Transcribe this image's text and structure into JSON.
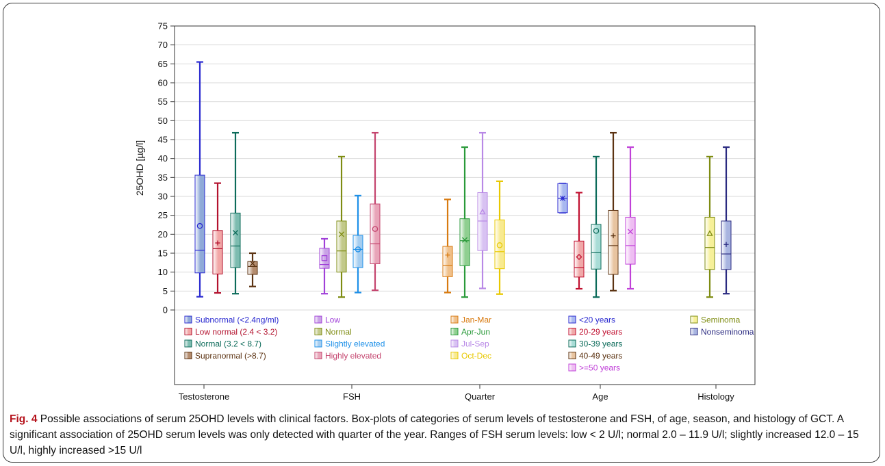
{
  "chart_data": {
    "type": "boxplot",
    "ylabel": "25OHD [µg/l]",
    "xlabel": "",
    "ylim": [
      0,
      75
    ],
    "yticks": [
      0,
      5,
      10,
      15,
      20,
      25,
      30,
      35,
      40,
      45,
      50,
      55,
      60,
      65,
      70,
      75
    ],
    "grid": "horizontal",
    "groups": [
      {
        "name": "Testosterone",
        "series": [
          {
            "name": "Subnormal (<2.4ng/ml)",
            "color": "#2a2ad0",
            "fill": "#8fa9d8",
            "marker": "circle",
            "min": 3.5,
            "q1": 9.8,
            "median": 15.8,
            "q3": 35.6,
            "max": 65.5,
            "mean": 22.2
          },
          {
            "name": "Low normal (2.4 < 3.2)",
            "color": "#b3122e",
            "fill": "#f2a6a6",
            "marker": "plus",
            "min": 4.5,
            "q1": 9.5,
            "median": 16.2,
            "q3": 21.0,
            "max": 33.5,
            "mean": 17.7
          },
          {
            "name": "Normal (3.2 < 8.7)",
            "color": "#0c6b5a",
            "fill": "#7dbcb0",
            "marker": "x",
            "min": 4.3,
            "q1": 11.2,
            "median": 16.9,
            "q3": 25.6,
            "max": 46.8,
            "mean": 20.4
          },
          {
            "name": "Supranormal (>8.7)",
            "color": "#5c3312",
            "fill": "#b48c6e",
            "marker": "x",
            "min": 6.2,
            "q1": 9.4,
            "median": 11.5,
            "q3": 12.8,
            "max": 15.0,
            "mean": 12.3
          }
        ]
      },
      {
        "name": "FSH",
        "series": [
          {
            "name": "Low",
            "color": "#a040d8",
            "fill": "#c9a2e6",
            "marker": "square",
            "min": 4.3,
            "q1": 11.0,
            "median": 12.0,
            "q3": 16.3,
            "max": 18.8,
            "mean": 13.7
          },
          {
            "name": "Normal",
            "color": "#7e8c12",
            "fill": "#c2c98a",
            "marker": "x",
            "min": 3.4,
            "q1": 10.0,
            "median": 15.6,
            "q3": 23.5,
            "max": 40.5,
            "mean": 20.0
          },
          {
            "name": "Slightly elevated",
            "color": "#1e90e8",
            "fill": "#a4cdf0",
            "marker": "circle",
            "min": 4.6,
            "q1": 11.2,
            "median": 16.0,
            "q3": 19.7,
            "max": 30.2,
            "mean": 16.0
          },
          {
            "name": "Highly elevated",
            "color": "#c4446e",
            "fill": "#e8a4b8",
            "marker": "circle",
            "min": 5.2,
            "q1": 12.2,
            "median": 17.5,
            "q3": 28.0,
            "max": 46.8,
            "mean": 21.4
          }
        ]
      },
      {
        "name": "Quarter",
        "series": [
          {
            "name": "Jan-Mar",
            "color": "#d87a10",
            "fill": "#f0c08a",
            "marker": "plus",
            "min": 4.6,
            "q1": 8.8,
            "median": 11.8,
            "q3": 16.8,
            "max": 29.2,
            "mean": 14.5
          },
          {
            "name": "Apr-Jun",
            "color": "#2a9a3a",
            "fill": "#8fcf90",
            "marker": "x",
            "min": 3.4,
            "q1": 11.7,
            "median": 18.3,
            "q3": 24.1,
            "max": 43.0,
            "mean": 18.5
          },
          {
            "name": "Jul-Sep",
            "color": "#b888e6",
            "fill": "#d8c2f2",
            "marker": "triangle",
            "min": 5.7,
            "q1": 15.7,
            "median": 23.5,
            "q3": 31.0,
            "max": 46.8,
            "mean": 25.9
          },
          {
            "name": "Oct-Dec",
            "color": "#e8c800",
            "fill": "#f8ea90",
            "marker": "circle",
            "min": 4.2,
            "q1": 10.9,
            "median": 15.4,
            "q3": 23.8,
            "max": 34.0,
            "mean": 17.1
          }
        ]
      },
      {
        "name": "Age",
        "series": [
          {
            "name": "<20 years",
            "color": "#2a2ad0",
            "fill": "#a8b8f0",
            "marker": "star",
            "min": 25.7,
            "q1": 25.7,
            "median": 29.5,
            "q3": 33.4,
            "max": 33.4,
            "mean": 29.5
          },
          {
            "name": "20-29 years",
            "color": "#c01030",
            "fill": "#f0a8a8",
            "marker": "diamond",
            "min": 5.6,
            "q1": 8.7,
            "median": 11.2,
            "q3": 18.2,
            "max": 31.0,
            "mean": 14.0
          },
          {
            "name": "30-39 years",
            "color": "#0c6b5a",
            "fill": "#a8dcd6",
            "marker": "circle",
            "min": 3.4,
            "q1": 10.8,
            "median": 15.2,
            "q3": 22.6,
            "max": 40.5,
            "mean": 20.9
          },
          {
            "name": "40-49 years",
            "color": "#5c3312",
            "fill": "#e8c4a0",
            "marker": "plus",
            "min": 5.1,
            "q1": 9.4,
            "median": 17.0,
            "q3": 26.3,
            "max": 46.8,
            "mean": 19.6
          },
          {
            "name": ">=50 years",
            "color": "#c040d8",
            "fill": "#eebef2",
            "marker": "x",
            "min": 5.6,
            "q1": 12.1,
            "median": 17.0,
            "q3": 24.5,
            "max": 43.0,
            "mean": 20.7
          }
        ]
      },
      {
        "name": "Histology",
        "series": [
          {
            "name": "Seminoma",
            "color": "#7e8c12",
            "fill": "#f6f098",
            "marker": "triangle",
            "min": 3.4,
            "q1": 10.7,
            "median": 16.5,
            "q3": 24.5,
            "max": 40.5,
            "mean": 20.2
          },
          {
            "name": "Nonseminoma",
            "color": "#2a2a80",
            "fill": "#a8b4e0",
            "marker": "plus",
            "min": 4.3,
            "q1": 10.7,
            "median": 14.8,
            "q3": 23.5,
            "max": 43.0,
            "mean": 17.3
          }
        ]
      }
    ]
  },
  "caption": {
    "label": "Fig. 4",
    "text": " Possible associations of serum 25OHD levels with clinical factors. Box-plots of categories of serum levels of testosterone and FSH, of age, season, and histology of GCT. A significant association of 25OHD serum levels was only detected with quarter of the year. Ranges of FSH serum levels: low < 2 U/l; normal 2.0 – 11.9 U/l; slightly increased 12.0 – 15 U/l, highly increased >15 U/l"
  }
}
